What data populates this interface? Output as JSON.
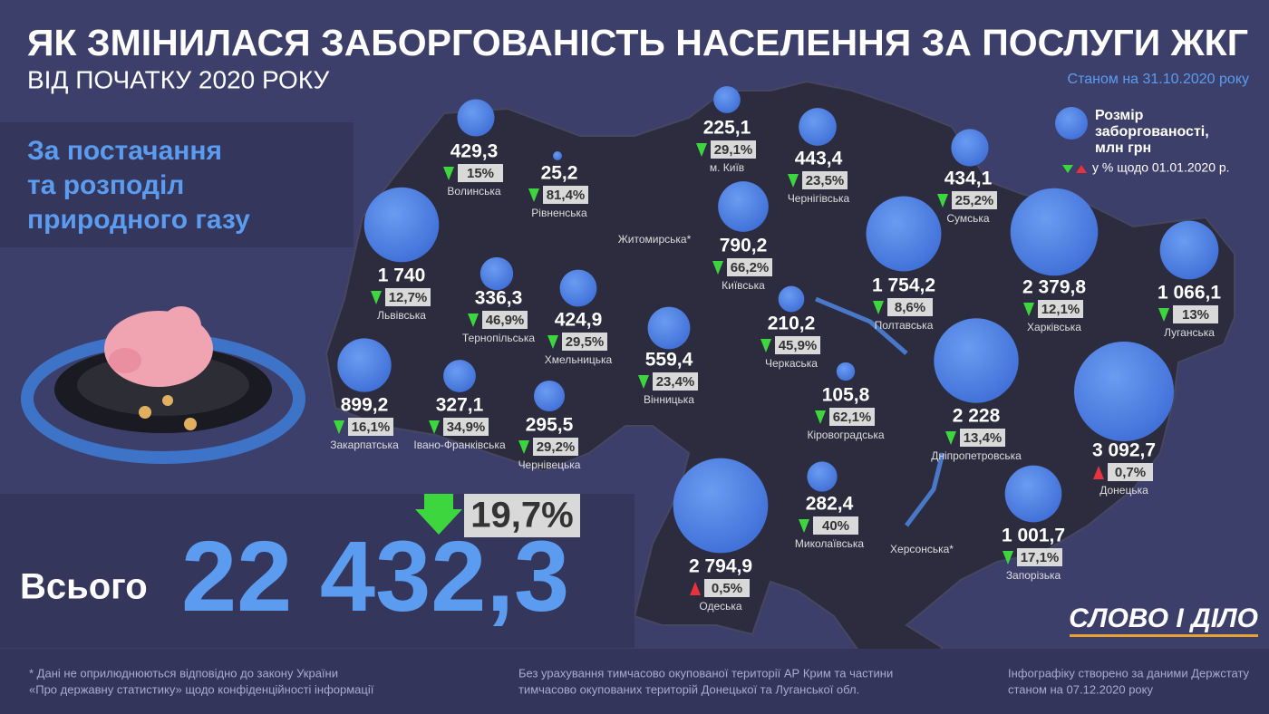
{
  "header": {
    "title": "ЯК ЗМІНИЛАСЯ ЗАБОРГОВАНІСТЬ НАСЕЛЕННЯ ЗА ПОСЛУГИ ЖКГ",
    "subtitle": "ВІД ПОЧАТКУ 2020 РОКУ",
    "date": "Станом на 31.10.2020 року"
  },
  "category": [
    "За постачання",
    "та розподіл",
    "природного газу"
  ],
  "legend": {
    "size": [
      "Розмір",
      "заборгованості,",
      "млн грн"
    ],
    "change": "у % щодо 01.01.2020 р."
  },
  "regions": [
    {
      "name": "Волинська",
      "debt": 429.3,
      "debt_label": "429,3",
      "change": "15%",
      "direction": "down"
    },
    {
      "name": "Рівненська",
      "debt": 25.2,
      "debt_label": "25,2",
      "change": "81,4%",
      "direction": "down"
    },
    {
      "name": "м. Київ",
      "debt": 225.1,
      "debt_label": "225,1",
      "change": "29,1%",
      "direction": "down"
    },
    {
      "name": "Чернігівська",
      "debt": 443.4,
      "debt_label": "443,4",
      "change": "23,5%",
      "direction": "down"
    },
    {
      "name": "Сумська",
      "debt": 434.1,
      "debt_label": "434,1",
      "change": "25,2%",
      "direction": "down"
    },
    {
      "name": "Житомирська*"
    },
    {
      "name": "Київська",
      "debt": 790.2,
      "debt_label": "790,2",
      "change": "66,2%",
      "direction": "down"
    },
    {
      "name": "Львівська",
      "debt": 1740,
      "debt_label": "1 740",
      "change": "12,7%",
      "direction": "down"
    },
    {
      "name": "Тернопільська",
      "debt": 336.3,
      "debt_label": "336,3",
      "change": "46,9%",
      "direction": "down"
    },
    {
      "name": "Хмельницька",
      "debt": 424.9,
      "debt_label": "424,9",
      "change": "29,5%",
      "direction": "down"
    },
    {
      "name": "Вінницька",
      "debt": 559.4,
      "debt_label": "559,4",
      "change": "23,4%",
      "direction": "down"
    },
    {
      "name": "Черкаська",
      "debt": 210.2,
      "debt_label": "210,2",
      "change": "45,9%",
      "direction": "down"
    },
    {
      "name": "Полтавська",
      "debt": 1754.2,
      "debt_label": "1 754,2",
      "change": "8,6%",
      "direction": "down"
    },
    {
      "name": "Харківська",
      "debt": 2379.8,
      "debt_label": "2 379,8",
      "change": "12,1%",
      "direction": "down"
    },
    {
      "name": "Луганська",
      "debt": 1066.1,
      "debt_label": "1 066,1",
      "change": "13%",
      "direction": "down"
    },
    {
      "name": "Закарпатська",
      "debt": 899.2,
      "debt_label": "899,2",
      "change": "16,1%",
      "direction": "down"
    },
    {
      "name": "Івано-Франківська",
      "debt": 327.1,
      "debt_label": "327,1",
      "change": "34,9%",
      "direction": "down"
    },
    {
      "name": "Чернівецька",
      "debt": 295.5,
      "debt_label": "295,5",
      "change": "29,2%",
      "direction": "down"
    },
    {
      "name": "Кіровоградська",
      "debt": 105.8,
      "debt_label": "105,8",
      "change": "62,1%",
      "direction": "down"
    },
    {
      "name": "Дніпропетровська",
      "debt": 2228,
      "debt_label": "2 228",
      "change": "13,4%",
      "direction": "down"
    },
    {
      "name": "Донецька",
      "debt": 3092.7,
      "debt_label": "3 092,7",
      "change": "0,7%",
      "direction": "up"
    },
    {
      "name": "Одеська",
      "debt": 2794.9,
      "debt_label": "2 794,9",
      "change": "0,5%",
      "direction": "up"
    },
    {
      "name": "Миколаївська",
      "debt": 282.4,
      "debt_label": "282,4",
      "change": "40%",
      "direction": "down"
    },
    {
      "name": "Херсонська*"
    },
    {
      "name": "Запорізька",
      "debt": 1001.7,
      "debt_label": "1 001,7",
      "change": "17,1%",
      "direction": "down"
    }
  ],
  "total": {
    "label": "Всього",
    "value": "22 432,3",
    "change": "19,7%"
  },
  "footnotes": [
    [
      "* Дані не оприлюднюються відповідно до закону України",
      "«Про державну статистику» щодо конфіденційності інформації"
    ],
    [
      "Без урахування тимчасово окупованої території АР Крим та частини",
      "тимчасово окупованих територій Донецької та Луганської обл."
    ],
    [
      "Інфографіку створено за даними Держстату",
      "станом на 07.12.2020 року"
    ]
  ],
  "logo": "СЛОВО І ДІЛО"
}
